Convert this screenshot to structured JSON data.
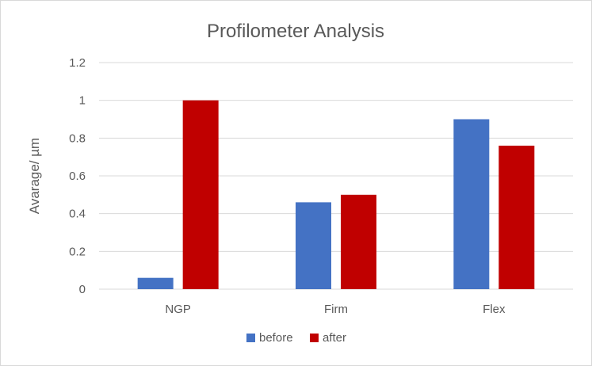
{
  "chart_data": {
    "type": "bar",
    "title": "Profilometer Analysis",
    "xlabel": "",
    "ylabel": "Avarage/ µm",
    "categories": [
      "NGP",
      "Firm",
      "Flex"
    ],
    "series": [
      {
        "name": "before",
        "color": "#4472c4",
        "values": [
          0.06,
          0.46,
          0.9
        ]
      },
      {
        "name": "after",
        "color": "#c00000",
        "values": [
          1.0,
          0.5,
          0.76
        ]
      }
    ],
    "ylim": [
      0,
      1.2
    ],
    "yticks": [
      "0",
      "0.2",
      "0.4",
      "0.6",
      "0.8",
      "1",
      "1.2"
    ],
    "grid": true,
    "legend_position": "bottom"
  }
}
